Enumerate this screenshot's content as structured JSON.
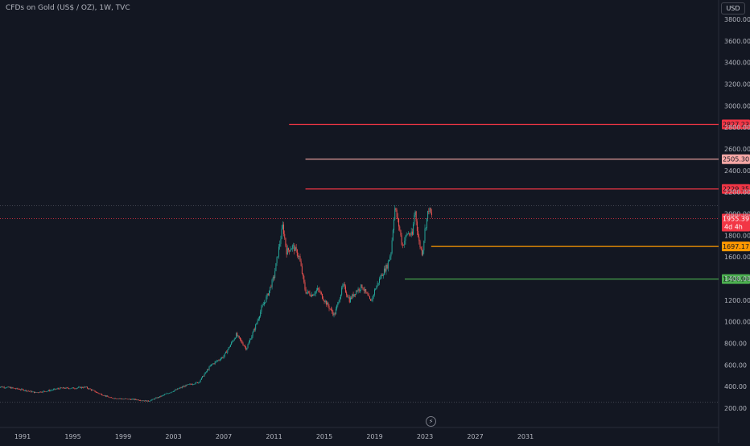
{
  "header": {
    "title": "CFDs on Gold (US$ / OZ), 1W, TVC",
    "currency": "USD"
  },
  "colors": {
    "background": "#131722",
    "candle_up": "#26a69a",
    "candle_down": "#ef5350",
    "line_red": "#f23645",
    "line_pink": "#f7a8a6",
    "line_orange": "#ff9800",
    "line_green": "#4caf50",
    "last_price": "#f23645"
  },
  "chart_data": {
    "type": "candlestick",
    "ylim": [
      200,
      3800
    ],
    "xlim": [
      1989.0,
      2034.0
    ],
    "y_ticks": [
      "200.00",
      "400.00",
      "600.00",
      "800.00",
      "1000.00",
      "1200.00",
      "1400.00",
      "1600.00",
      "1800.00",
      "2000.00",
      "2200.00",
      "2400.00",
      "2600.00",
      "2800.00",
      "3000.00",
      "3200.00",
      "3400.00",
      "3600.00",
      "3800.00"
    ],
    "x_ticks": [
      "1991",
      "1995",
      "1999",
      "2003",
      "2007",
      "2011",
      "2015",
      "2019",
      "2023",
      "2027",
      "2031"
    ],
    "price_path": [
      [
        1989.0,
        400
      ],
      [
        1990.0,
        390
      ],
      [
        1991.0,
        370
      ],
      [
        1992.0,
        345
      ],
      [
        1993.0,
        360
      ],
      [
        1994.0,
        385
      ],
      [
        1995.0,
        385
      ],
      [
        1996.0,
        395
      ],
      [
        1997.0,
        340
      ],
      [
        1998.0,
        295
      ],
      [
        1999.0,
        285
      ],
      [
        2000.0,
        280
      ],
      [
        2001.0,
        265
      ],
      [
        2002.0,
        310
      ],
      [
        2003.0,
        360
      ],
      [
        2004.0,
        410
      ],
      [
        2005.0,
        440
      ],
      [
        2006.0,
        600
      ],
      [
        2007.0,
        680
      ],
      [
        2008.0,
        880
      ],
      [
        2008.8,
        750
      ],
      [
        2009.5,
        950
      ],
      [
        2010.0,
        1120
      ],
      [
        2010.5,
        1250
      ],
      [
        2011.0,
        1420
      ],
      [
        2011.7,
        1890
      ],
      [
        2012.0,
        1650
      ],
      [
        2012.5,
        1700
      ],
      [
        2013.0,
        1600
      ],
      [
        2013.5,
        1280
      ],
      [
        2014.0,
        1250
      ],
      [
        2014.5,
        1300
      ],
      [
        2015.0,
        1200
      ],
      [
        2015.8,
        1060
      ],
      [
        2016.5,
        1340
      ],
      [
        2017.0,
        1200
      ],
      [
        2017.5,
        1280
      ],
      [
        2018.0,
        1330
      ],
      [
        2018.7,
        1180
      ],
      [
        2019.0,
        1290
      ],
      [
        2019.5,
        1420
      ],
      [
        2020.0,
        1520
      ],
      [
        2020.3,
        1640
      ],
      [
        2020.6,
        2060
      ],
      [
        2021.0,
        1850
      ],
      [
        2021.2,
        1700
      ],
      [
        2021.6,
        1820
      ],
      [
        2022.0,
        1800
      ],
      [
        2022.2,
        2050
      ],
      [
        2022.5,
        1750
      ],
      [
        2022.8,
        1630
      ],
      [
        2023.0,
        1850
      ],
      [
        2023.3,
        2050
      ],
      [
        2023.6,
        1955
      ]
    ],
    "last_price": "1955.39",
    "countdown": "4d 4h",
    "levels": [
      {
        "price": 2827.23,
        "label": "2827.23",
        "color": "#f23645",
        "x_start": 2012.2
      },
      {
        "price": 2505.3,
        "label": "2505.30",
        "color": "#f7a8a6",
        "x_start": 2013.5
      },
      {
        "price": 2229.35,
        "label": "2229.35",
        "color": "#f23645",
        "x_start": 2013.5
      },
      {
        "price": 1697.17,
        "label": "1697.17",
        "color": "#ff9800",
        "x_start": 2023.5
      },
      {
        "price": 1394.94,
        "label": "1394.94",
        "color": "#4caf50",
        "x_start": 2021.4
      }
    ]
  }
}
